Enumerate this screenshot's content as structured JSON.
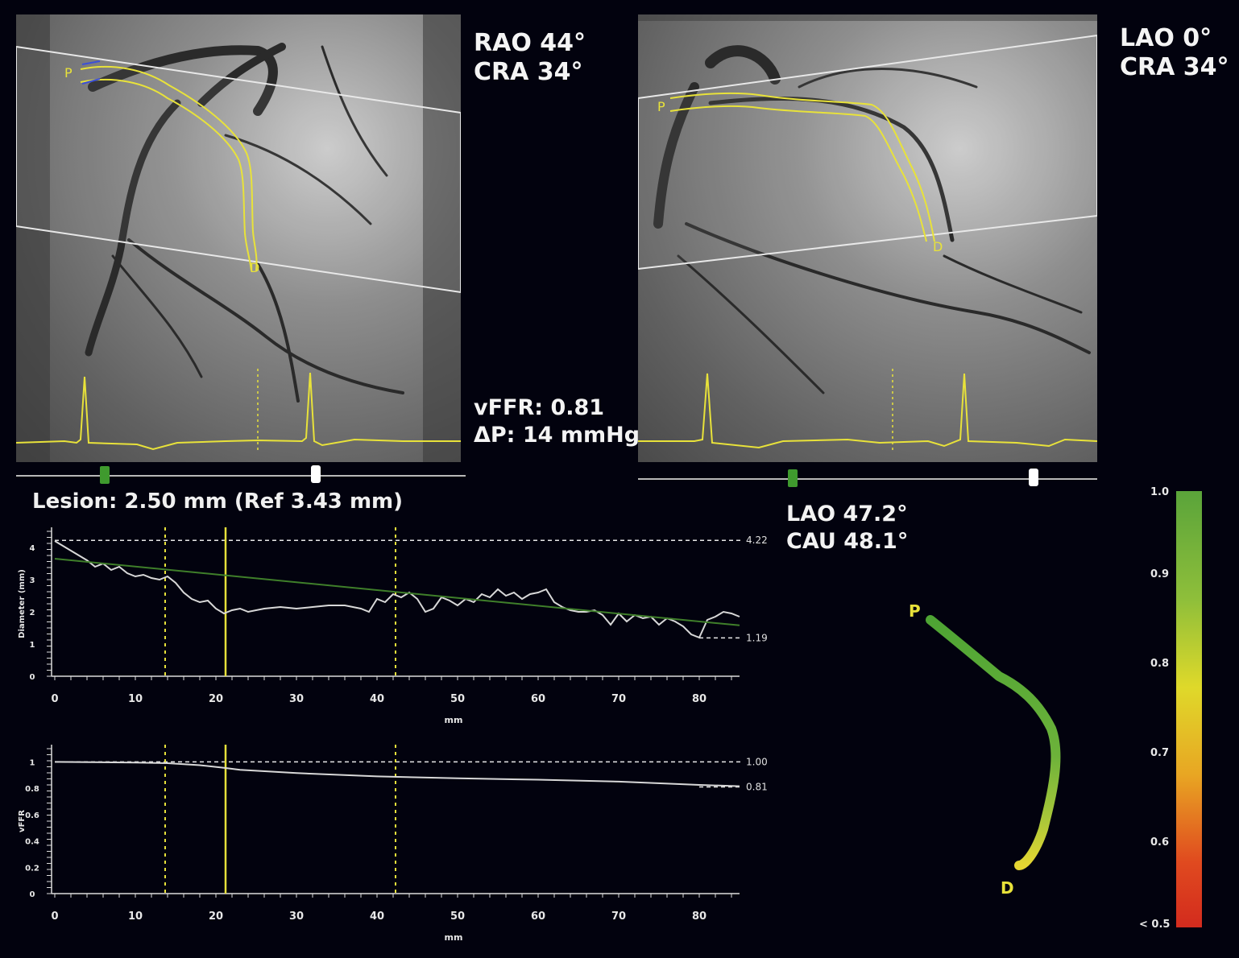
{
  "left_view": {
    "angle_line1": "RAO 44°",
    "angle_line2": "CRA 34°",
    "label_p": "P",
    "label_d": "D"
  },
  "right_view": {
    "angle_line1": "LAO 0°",
    "angle_line2": "CRA 34°",
    "label_p": "P",
    "label_d": "D"
  },
  "results": {
    "vffr": "vFFR: 0.81",
    "delta_p": "ΔP: 14 mmHg"
  },
  "lesion": "Lesion: 2.50 mm (Ref 3.43 mm)",
  "optimal_view": {
    "line1": "LAO 47.2°",
    "line2": "CAU 48.1°"
  },
  "vessel_3d": {
    "label_p": "P",
    "label_d": "D"
  },
  "colorbar": {
    "ticks": [
      "1.0",
      "0.9",
      "0.8",
      "0.7",
      "0.6",
      "< 0.5"
    ]
  },
  "colors": {
    "trace": "#e6e03a",
    "green": "#3f9a2e",
    "gray_curve": "#d8d8d8"
  },
  "chart_data": [
    {
      "type": "line",
      "xlabel": "mm",
      "ylabel": "Diameter (mm)",
      "xlim": [
        0,
        85
      ],
      "ylim": [
        0,
        4.5
      ],
      "x_ticks": [
        "0",
        "10",
        "20",
        "30",
        "40",
        "50",
        "60",
        "70",
        "80"
      ],
      "y_ticks": [
        "0",
        "1",
        "2",
        "3",
        "4"
      ],
      "ref_labels": [
        "4.22",
        "1.19"
      ],
      "ref_values": [
        4.22,
        1.19
      ],
      "markers_x": [
        13.7,
        21.2,
        42.3
      ],
      "series": [
        {
          "x": [
            0,
            2,
            4,
            5,
            6,
            7,
            8,
            9,
            10,
            11,
            12,
            13,
            14,
            15,
            16,
            17,
            18,
            19,
            20,
            21,
            22,
            23,
            24,
            26,
            28,
            30,
            32,
            34,
            36,
            38,
            39,
            40,
            41,
            42,
            43,
            44,
            45,
            46,
            47,
            48,
            49,
            50,
            51,
            52,
            53,
            54,
            55,
            56,
            57,
            58,
            59,
            60,
            61,
            62,
            63,
            64,
            65,
            66,
            67,
            68,
            69,
            70,
            71,
            72,
            73,
            74,
            75,
            76,
            77,
            78,
            79,
            80,
            81,
            82,
            83,
            84,
            85
          ],
          "values": [
            4.2,
            3.9,
            3.6,
            3.4,
            3.5,
            3.3,
            3.4,
            3.2,
            3.1,
            3.15,
            3.05,
            3.0,
            3.1,
            2.9,
            2.6,
            2.4,
            2.3,
            2.35,
            2.1,
            1.95,
            2.05,
            2.1,
            2.0,
            2.1,
            2.15,
            2.1,
            2.15,
            2.2,
            2.2,
            2.1,
            2.0,
            2.4,
            2.3,
            2.55,
            2.45,
            2.6,
            2.4,
            2.0,
            2.1,
            2.45,
            2.35,
            2.2,
            2.4,
            2.3,
            2.55,
            2.45,
            2.7,
            2.5,
            2.6,
            2.4,
            2.55,
            2.6,
            2.7,
            2.3,
            2.15,
            2.05,
            2.0,
            2.0,
            2.05,
            1.9,
            1.6,
            1.95,
            1.7,
            1.9,
            1.8,
            1.85,
            1.6,
            1.8,
            1.7,
            1.55,
            1.3,
            1.2,
            1.75,
            1.85,
            2.0,
            1.95,
            1.85
          ]
        },
        {
          "x": [
            0,
            85
          ],
          "values": [
            3.65,
            1.58
          ]
        }
      ]
    },
    {
      "type": "line",
      "xlabel": "mm",
      "ylabel": "vFFR",
      "xlim": [
        0,
        85
      ],
      "ylim": [
        0,
        1.1
      ],
      "x_ticks": [
        "0",
        "10",
        "20",
        "30",
        "40",
        "50",
        "60",
        "70",
        "80"
      ],
      "y_ticks": [
        "0",
        "0.2",
        "0.4",
        "0.6",
        "0.8",
        "1"
      ],
      "ref_labels": [
        "1.00",
        "0.81"
      ],
      "ref_values": [
        1.0,
        0.81
      ],
      "markers_x": [
        13.7,
        21.2,
        42.3
      ],
      "series": [
        {
          "x": [
            0,
            10,
            14,
            18,
            21,
            23,
            30,
            40,
            50,
            60,
            70,
            80,
            85
          ],
          "values": [
            1.0,
            0.995,
            0.99,
            0.975,
            0.955,
            0.94,
            0.915,
            0.89,
            0.875,
            0.865,
            0.85,
            0.825,
            0.815
          ]
        }
      ]
    }
  ]
}
